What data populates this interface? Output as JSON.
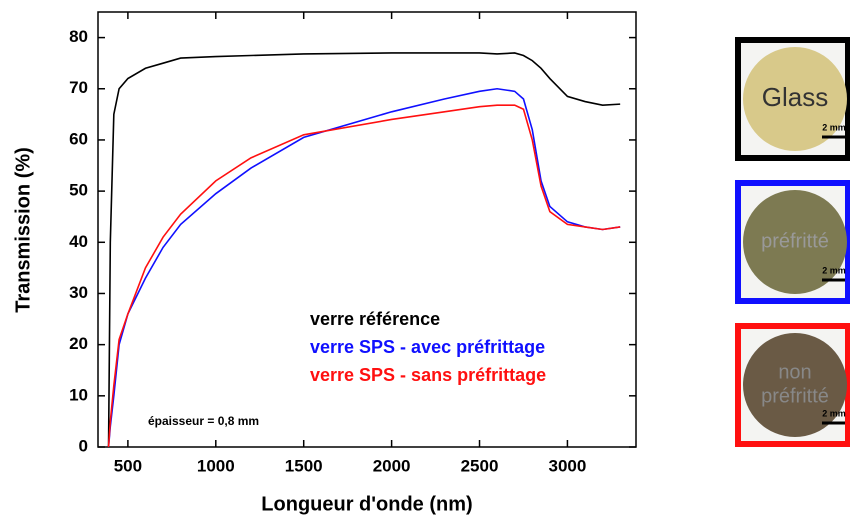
{
  "chart_data": {
    "type": "line",
    "x_label": "Longueur d'onde (nm)",
    "y_label": "Transmission (%)",
    "annotation": "épaisseur = 0,8 mm",
    "x": [
      390,
      400,
      420,
      450,
      500,
      600,
      700,
      800,
      1000,
      1200,
      1500,
      2000,
      2300,
      2500,
      2600,
      2700,
      2750,
      2800,
      2850,
      2900,
      3000,
      3100,
      3200,
      3300
    ],
    "series": [
      {
        "name": "verre référence",
        "color": "#000000",
        "values": [
          0,
          40,
          65,
          70,
          72,
          74,
          75,
          76,
          76.3,
          76.5,
          76.8,
          77,
          77,
          77,
          76.8,
          77,
          76.5,
          75.5,
          74,
          72,
          68.5,
          67.5,
          66.8,
          67
        ]
      },
      {
        "name": "verre SPS - avec préfrittage",
        "color": "#1010ff",
        "values": [
          0,
          4,
          10,
          20,
          26,
          33,
          39,
          43.5,
          49.5,
          54.5,
          60.5,
          65.5,
          68,
          69.5,
          70,
          69.5,
          68,
          62,
          52,
          47,
          44,
          43,
          42.5,
          43
        ]
      },
      {
        "name": "verre SPS - sans préfrittage",
        "color": "#ff1010",
        "values": [
          0,
          5,
          12,
          21,
          26,
          35,
          41,
          45.5,
          52,
          56.5,
          61,
          64,
          65.5,
          66.5,
          66.8,
          66.8,
          66,
          60,
          51,
          46,
          43.5,
          43,
          42.5,
          43
        ]
      }
    ],
    "xlim": [
      330,
      3390
    ],
    "ylim": [
      0,
      85
    ],
    "xticks": [
      500,
      1000,
      1500,
      2000,
      2500,
      3000
    ],
    "yticks": [
      0,
      10,
      20,
      30,
      40,
      50,
      60,
      70,
      80
    ]
  },
  "photos": [
    {
      "label_lines": [
        "Glass"
      ],
      "scale": "2 mm"
    },
    {
      "label_lines": [
        "préfritté"
      ],
      "scale": "2 mm"
    },
    {
      "label_lines": [
        "non",
        "préfritté"
      ],
      "scale": "2 mm"
    }
  ]
}
